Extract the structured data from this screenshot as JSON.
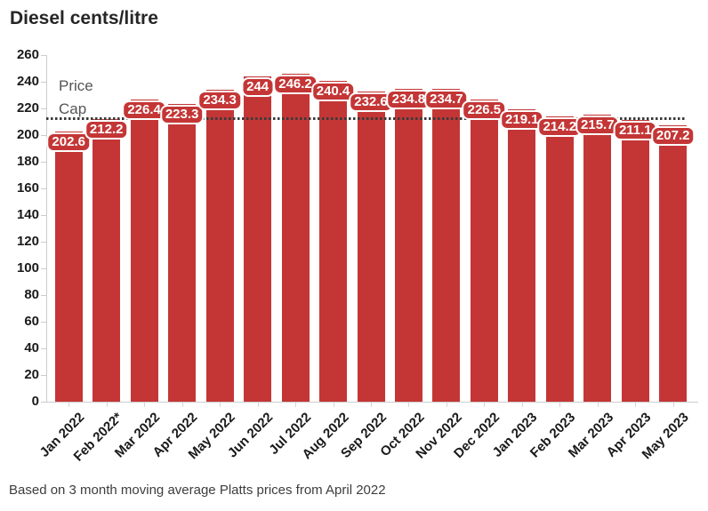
{
  "title": "Diesel cents/litre",
  "footnote": "Based on 3 month moving average Platts prices from April 2022",
  "price_cap": {
    "line1": "Price",
    "line2": "Cap",
    "value": 212.7
  },
  "colors": {
    "bar": "#c43636",
    "badge_background": "#c43636",
    "badge_text": "#ffffff",
    "price_cap_line": "#3a3a3a",
    "axis_line": "#cccccc",
    "title_text": "#262626",
    "price_cap_text": "#555555",
    "footnote_text": "#3d3d3d",
    "tick_label_text": "#1a1a1a"
  },
  "chart_data": {
    "type": "bar",
    "title": "Diesel cents/litre",
    "categories": [
      "Jan 2022",
      "Feb 2022*",
      "Mar 2022",
      "Apr 2022",
      "May 2022",
      "Jun 2022",
      "Jul 2022",
      "Aug 2022",
      "Sep 2022",
      "Oct 2022",
      "Nov 2022",
      "Dec 2022",
      "Jan 2023",
      "Feb 2023",
      "Mar 2023",
      "Apr 2023",
      "May 2023"
    ],
    "values": [
      202.6,
      212.2,
      226.4,
      223.3,
      234.3,
      244,
      246.2,
      240.4,
      232.6,
      234.8,
      234.7,
      226.5,
      219.1,
      214.2,
      215.7,
      211.1,
      207.2
    ],
    "value_labels": [
      "202.6",
      "212.2",
      "226.4",
      "223.3",
      "234.3",
      "244",
      "246.2",
      "240.4",
      "232.6",
      "234.8",
      "234.7",
      "226.5",
      "219.1",
      "214.2",
      "215.7",
      "211.1",
      "207.2"
    ],
    "xlabel": "",
    "ylabel": "",
    "ylim": [
      0,
      260
    ],
    "ytick_step": 20,
    "grid": false,
    "legend": false,
    "annotations": [
      {
        "type": "hline",
        "label": "Price Cap",
        "value": 212.7
      }
    ]
  }
}
